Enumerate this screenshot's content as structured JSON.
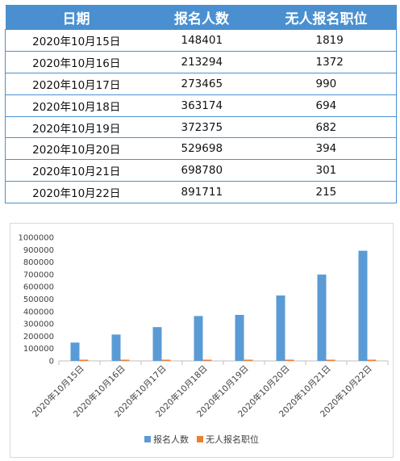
{
  "table": {
    "headers": [
      "日期",
      "报名人数",
      "无人报名职位"
    ],
    "rows": [
      [
        "2020年10月15日",
        "148401",
        "1819"
      ],
      [
        "2020年10月16日",
        "213294",
        "1372"
      ],
      [
        "2020年10月17日",
        "273465",
        "990"
      ],
      [
        "2020年10月18日",
        "363174",
        "694"
      ],
      [
        "2020年10月19日",
        "372375",
        "682"
      ],
      [
        "2020年10月20日",
        "529698",
        "394"
      ],
      [
        "2020年10月21日",
        "698780",
        "301"
      ],
      [
        "2020年10月22日",
        "891711",
        "215"
      ]
    ]
  },
  "colors": {
    "header_bg": "#4a90d0",
    "series1": "#5b9bd5",
    "series2": "#ed7d31"
  },
  "chart_data": {
    "type": "bar",
    "title": "",
    "xlabel": "",
    "ylabel": "",
    "categories": [
      "2020年10月15日",
      "2020年10月16日",
      "2020年10月17日",
      "2020年10月18日",
      "2020年10月19日",
      "2020年10月20日",
      "2020年10月21日",
      "2020年10月22日"
    ],
    "series": [
      {
        "name": "报名人数",
        "values": [
          148401,
          213294,
          273465,
          363174,
          372375,
          529698,
          698780,
          891711
        ]
      },
      {
        "name": "无人报名职位",
        "values": [
          1819,
          1372,
          990,
          694,
          682,
          394,
          301,
          215
        ]
      }
    ],
    "ylim": [
      0,
      1000000
    ],
    "yticks": [
      "0",
      "100000",
      "200000",
      "300000",
      "400000",
      "500000",
      "600000",
      "700000",
      "800000",
      "900000",
      "1000000"
    ],
    "grid": false,
    "legend": "bottom"
  }
}
